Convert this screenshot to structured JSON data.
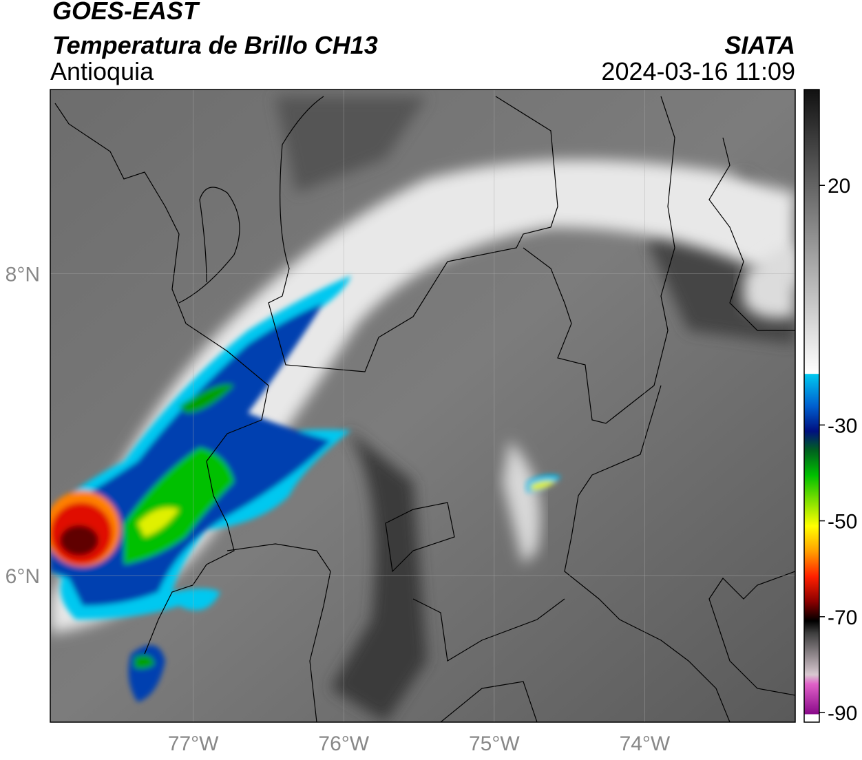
{
  "header": {
    "title": "GOES-EAST",
    "subtitle": "Temperatura de Brillo CH13",
    "region": "Antioquia",
    "source": "SIATA",
    "datetime": "2024-03-16 11:09"
  },
  "map": {
    "xlim": [
      -77.95,
      -73.0
    ],
    "ylim": [
      5.03,
      9.22
    ],
    "xticks": [
      {
        "value": -77,
        "label": "77°W"
      },
      {
        "value": -76,
        "label": "76°W"
      },
      {
        "value": -75,
        "label": "75°W"
      },
      {
        "value": -74,
        "label": "74°W"
      }
    ],
    "yticks": [
      {
        "value": 6,
        "label": "6°N"
      },
      {
        "value": 8,
        "label": "8°N"
      }
    ],
    "grid": true
  },
  "colorbar": {
    "lim": [
      -92,
      40
    ],
    "ticks": [
      20,
      -30,
      -50,
      -70,
      -90
    ]
  }
}
